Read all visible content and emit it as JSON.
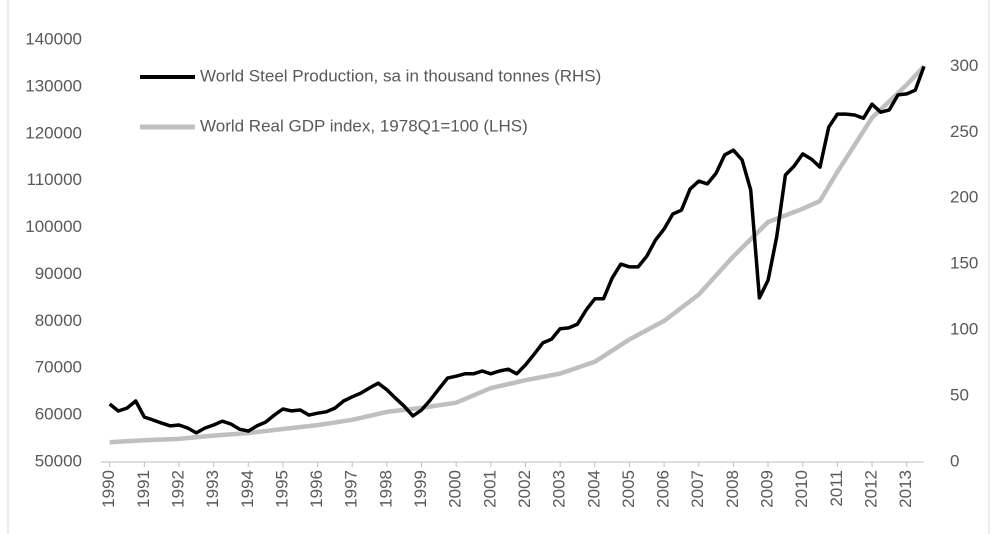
{
  "chart_data": {
    "type": "line",
    "xlim": [
      1989.75,
      2013.5
    ],
    "xticks": [
      1990,
      1991,
      1992,
      1993,
      1994,
      1995,
      1996,
      1997,
      1998,
      1999,
      2000,
      2001,
      2002,
      2003,
      2004,
      2005,
      2006,
      2007,
      2008,
      2009,
      2010,
      2011,
      2012,
      2013
    ],
    "ylim": [
      50000,
      140000
    ],
    "yticks": [
      50000,
      60000,
      70000,
      80000,
      90000,
      100000,
      110000,
      120000,
      130000,
      140000
    ],
    "y2lim": [
      0,
      320
    ],
    "y2ticks": [
      0,
      50,
      100,
      150,
      200,
      250,
      300
    ],
    "grid": false,
    "series": [
      {
        "name": "World Steel Production, sa in thousand tonnes (RHS)",
        "color": "#000000",
        "axis": "y",
        "x": [
          1990,
          1990.25,
          1990.5,
          1990.75,
          1991,
          1991.25,
          1991.5,
          1991.75,
          1992,
          1992.25,
          1992.5,
          1992.75,
          1993,
          1993.25,
          1993.5,
          1993.75,
          1994,
          1994.25,
          1994.5,
          1994.75,
          1995,
          1995.25,
          1995.5,
          1995.75,
          1996,
          1996.25,
          1996.5,
          1996.75,
          1997,
          1997.25,
          1997.5,
          1997.75,
          1998,
          1998.25,
          1998.5,
          1998.75,
          1999,
          1999.25,
          1999.5,
          1999.75,
          2000,
          2000.25,
          2000.5,
          2000.75,
          2001,
          2001.25,
          2001.5,
          2001.75,
          2002,
          2002.25,
          2002.5,
          2002.75,
          2003,
          2003.25,
          2003.5,
          2003.75,
          2004,
          2004.25,
          2004.5,
          2004.75,
          2005,
          2005.25,
          2005.5,
          2005.75,
          2006,
          2006.25,
          2006.5,
          2006.75,
          2007,
          2007.25,
          2007.5,
          2007.75,
          2008,
          2008.25,
          2008.5,
          2008.75,
          2009,
          2009.25,
          2009.5,
          2009.75,
          2010,
          2010.25,
          2010.5,
          2010.75,
          2011,
          2011.25,
          2011.5,
          2011.75,
          2012,
          2012.25,
          2012.5,
          2012.75,
          2013,
          2013.25,
          2013.5
        ],
        "values": [
          62370,
          60870,
          61500,
          63000,
          59600,
          58950,
          58300,
          57700,
          57900,
          57250,
          56200,
          57250,
          57900,
          58700,
          58100,
          57000,
          56600,
          57700,
          58500,
          60000,
          61300,
          60900,
          61100,
          60000,
          60400,
          60700,
          61500,
          63000,
          63900,
          64700,
          65800,
          66800,
          65400,
          63600,
          61900,
          59800,
          61100,
          63200,
          65600,
          67900,
          68300,
          68800,
          68800,
          69400,
          68800,
          69400,
          69800,
          68800,
          70700,
          73000,
          75400,
          76200,
          78400,
          78600,
          79400,
          82400,
          84800,
          84800,
          89200,
          92200,
          91600,
          91600,
          93900,
          97300,
          99700,
          102900,
          103700,
          108200,
          109900,
          109300,
          111600,
          115500,
          116500,
          114400,
          108000,
          85000,
          88800,
          98000,
          111200,
          113100,
          115700,
          114600,
          112900,
          121400,
          124200,
          124200,
          124000,
          123300,
          126300,
          124600,
          125100,
          128300,
          128500,
          129300,
          134400
        ]
      },
      {
        "name": "World Real GDP index, 1978Q1=100 (LHS)",
        "color": "#bfbfbf",
        "axis": "y2",
        "x": [
          1990,
          1991,
          1992,
          1993,
          1994,
          1995,
          1996,
          1997,
          1998,
          1999,
          2000,
          2001,
          2002,
          2003,
          2004,
          2005,
          2006,
          2007,
          2008,
          2009,
          2010,
          2010.5,
          2011,
          2012,
          2013,
          2013.5
        ],
        "values": [
          15,
          16.5,
          17.5,
          20,
          22,
          25,
          28,
          32,
          38,
          41,
          45,
          56,
          62,
          67,
          76,
          93,
          107,
          127,
          156,
          182,
          192,
          198,
          220,
          261,
          286,
          300
        ]
      }
    ]
  }
}
